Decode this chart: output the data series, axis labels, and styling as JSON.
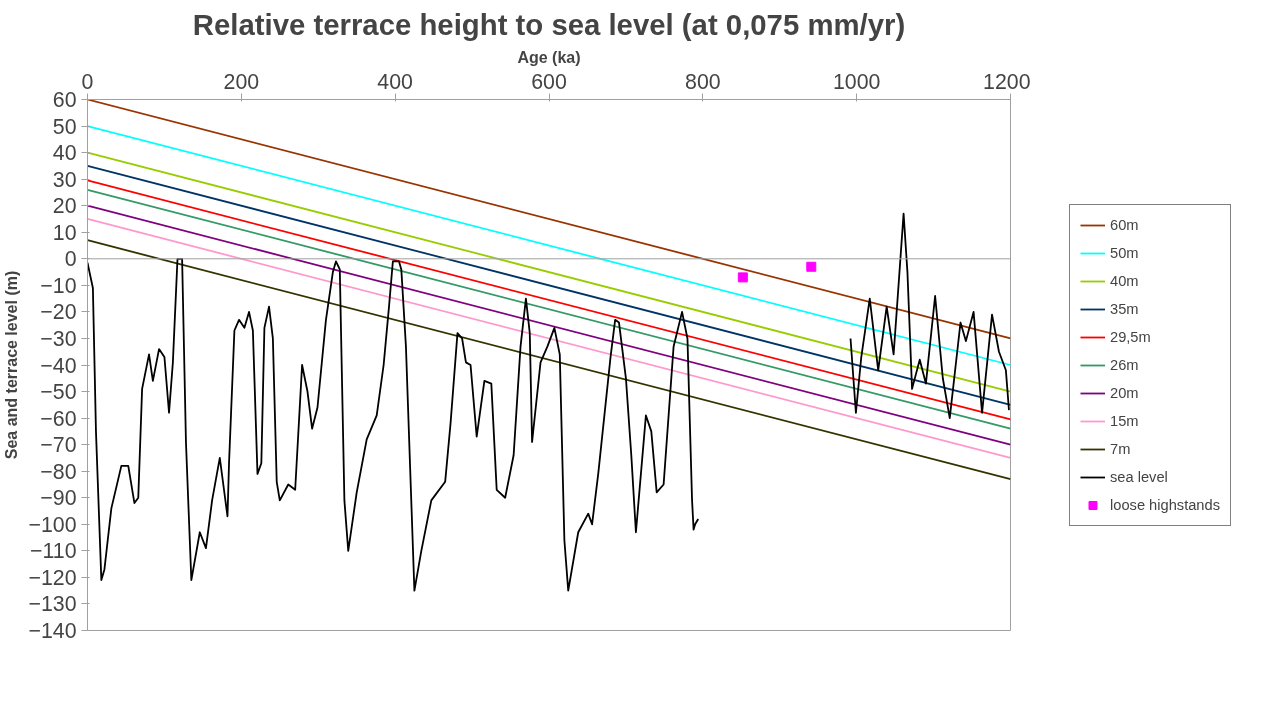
{
  "chart_data": {
    "type": "line",
    "title": "Relative terrace height to sea level (at 0,075 mm/yr)",
    "xlabel": "Age (ka)",
    "ylabel": "Sea and terrace level (m)",
    "xlim": [
      0,
      1200
    ],
    "xticks": [
      0,
      200,
      400,
      600,
      800,
      1000,
      1200
    ],
    "ylim": [
      -140,
      60
    ],
    "yticks": [
      -140,
      -130,
      -120,
      -110,
      -100,
      -90,
      -80,
      -70,
      -60,
      -50,
      -40,
      -30,
      -20,
      -10,
      0,
      10,
      20,
      30,
      40,
      50,
      60
    ],
    "grid": false,
    "legend": "right",
    "line_style": "solid",
    "ref_lines": [
      {
        "axis": "y",
        "value": 0,
        "color": "#a0a0a0"
      }
    ],
    "series": [
      {
        "name": "60m",
        "color": "#993300",
        "x": [
          0,
          1200
        ],
        "values": [
          60,
          -30
        ]
      },
      {
        "name": "50m",
        "color": "#00ffff",
        "x": [
          0,
          1200
        ],
        "values": [
          50,
          -40
        ]
      },
      {
        "name": "40m",
        "color": "#99cc00",
        "x": [
          0,
          1200
        ],
        "values": [
          40,
          -50
        ]
      },
      {
        "name": "35m",
        "color": "#003366",
        "x": [
          0,
          1200
        ],
        "values": [
          35,
          -55
        ]
      },
      {
        "name": "29,5m",
        "color": "#ff0000",
        "x": [
          0,
          1200
        ],
        "values": [
          29.5,
          -60.5
        ]
      },
      {
        "name": "26m",
        "color": "#339966",
        "x": [
          0,
          1200
        ],
        "values": [
          26,
          -64
        ]
      },
      {
        "name": "20m",
        "color": "#800080",
        "x": [
          0,
          1200
        ],
        "values": [
          20,
          -70
        ]
      },
      {
        "name": "15m",
        "color": "#ff99cc",
        "x": [
          0,
          1200
        ],
        "values": [
          15,
          -75
        ]
      },
      {
        "name": "7m",
        "color": "#333300",
        "x": [
          0,
          1200
        ],
        "values": [
          7,
          -83
        ]
      },
      {
        "name": "sea level",
        "color": "#000000",
        "x": [
          0,
          7,
          11,
          18,
          22,
          31,
          44,
          53,
          61,
          66,
          71,
          80,
          85,
          93,
          100,
          106,
          111,
          117,
          123,
          128,
          135,
          146,
          154,
          162,
          172,
          182,
          184,
          191,
          197,
          204,
          210,
          215,
          221,
          226,
          230,
          236,
          241,
          246,
          250,
          261,
          270,
          279,
          286,
          292,
          299,
          310,
          319,
          323,
          328,
          334,
          339,
          350,
          363,
          376,
          385,
          392,
          397,
          405,
          408,
          414,
          425,
          434,
          447,
          465,
          472,
          481,
          487,
          492,
          498,
          506,
          516,
          525,
          532,
          543,
          554,
          563,
          570,
          575,
          578,
          589,
          598,
          607,
          614,
          620,
          625,
          638,
          651,
          656,
          664,
          680,
          686,
          691,
          700,
          707,
          713,
          726,
          733,
          740,
          749,
          762,
          773,
          780,
          786,
          788,
          790,
          794,
          900,
          992,
          999,
          1006,
          1017,
          1028,
          1039,
          1048,
          1052,
          1061,
          1066,
          1072,
          1082,
          1090,
          1102,
          1112,
          1121,
          1135,
          1142,
          1152,
          1163,
          1176,
          1185,
          1194,
          1198
        ],
        "values": [
          -1.5,
          -11,
          -65,
          -121,
          -117,
          -94,
          -78,
          -78,
          -92,
          -90,
          -49,
          -36,
          -46,
          -34,
          -37,
          -58,
          -39,
          0,
          0,
          -69,
          -121,
          -103,
          -109,
          -91,
          -75,
          -97,
          -77,
          -27,
          -23,
          -26,
          -20,
          -27,
          -81,
          -77,
          -26,
          -18,
          -30,
          -84,
          -91,
          -85,
          -87,
          -40,
          -50,
          -64,
          -56,
          -23,
          -5,
          -1,
          -4,
          -91,
          -110,
          -88,
          -68,
          -59,
          -40,
          -18,
          -1,
          -1,
          -4,
          -33,
          -125,
          -110,
          -91,
          -84,
          -62,
          -28,
          -30,
          -39,
          -40,
          -67,
          -46,
          -47,
          -87,
          -90,
          -74,
          -33,
          -15,
          -28,
          -69,
          -39,
          -33,
          -26,
          -36,
          -106,
          -125,
          -103,
          -96,
          -100,
          -81,
          -37,
          -23,
          -24,
          -45,
          -74,
          -103,
          -59,
          -65,
          -88,
          -85,
          -33,
          -20,
          -30,
          -91,
          -102,
          -100,
          -98,
          null,
          -30,
          -58,
          -37,
          -15,
          -42,
          -18,
          -36,
          -20,
          17,
          -5,
          -49,
          -38,
          -47,
          -14,
          -45,
          -60,
          -24,
          -31,
          -20,
          -58,
          -21,
          -35,
          -42,
          -57
        ]
      },
      {
        "name": "loose highstands",
        "color": "#ff00ff",
        "type": "scatter",
        "marker": "square",
        "x": [
          852,
          941
        ],
        "values": [
          -7,
          -3
        ]
      }
    ]
  }
}
